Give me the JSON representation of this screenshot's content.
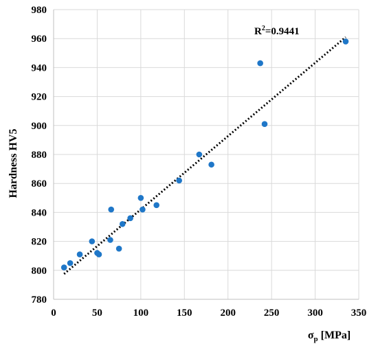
{
  "chart_data": {
    "type": "scatter",
    "title": "",
    "xlabel": "σp [MPa]",
    "xlabel_main": "σ",
    "xlabel_sub": "p",
    "xlabel_unit": " [MPa]",
    "ylabel": "Hardness HV5",
    "xlim": [
      0,
      350
    ],
    "ylim": [
      780,
      980
    ],
    "x_ticks": [
      0,
      50,
      100,
      150,
      200,
      250,
      300,
      350
    ],
    "y_ticks": [
      780,
      800,
      820,
      840,
      860,
      880,
      900,
      920,
      940,
      960,
      980
    ],
    "grid": true,
    "legend": "none",
    "annotation": "R²=0.9441",
    "annotation_base": "R",
    "annotation_sup": "2",
    "annotation_rest": "=0.9441",
    "series": [
      {
        "color": "#1f77c8",
        "points": [
          [
            12,
            802
          ],
          [
            19,
            805
          ],
          [
            30,
            811
          ],
          [
            44,
            820
          ],
          [
            50,
            812
          ],
          [
            52,
            811
          ],
          [
            65,
            821
          ],
          [
            66,
            842
          ],
          [
            75,
            815
          ],
          [
            79,
            832
          ],
          [
            88,
            836
          ],
          [
            100,
            850
          ],
          [
            102,
            842
          ],
          [
            118,
            845
          ],
          [
            144,
            862
          ],
          [
            167,
            880
          ],
          [
            181,
            873
          ],
          [
            237,
            943
          ],
          [
            242,
            901
          ],
          [
            335,
            958
          ]
        ]
      }
    ],
    "trendline": {
      "style": "dotted",
      "color": "#000000",
      "x": [
        12,
        335
      ],
      "y": [
        797.5,
        961
      ]
    }
  }
}
